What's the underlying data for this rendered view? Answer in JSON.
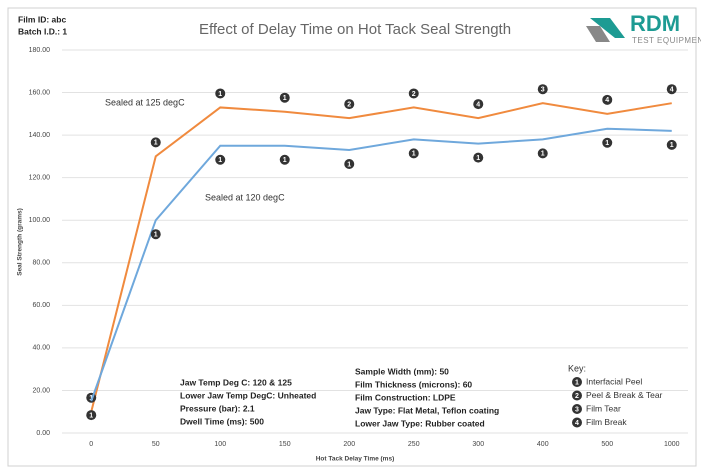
{
  "chart_data": {
    "type": "line",
    "title": "Effect of Delay Time on Hot Tack Seal Strength",
    "header_lines": [
      "Film ID: abc",
      "Batch I.D.: 1"
    ],
    "logo": {
      "name": "RDM",
      "subtitle": "TEST EQUIPMENT"
    },
    "x_label": "Hot Tack Delay Time (ms)",
    "y_label": "Seal Strength (grams)",
    "categories": [
      "0",
      "50",
      "100",
      "150",
      "200",
      "250",
      "300",
      "400",
      "500",
      "1000"
    ],
    "ylim": [
      0,
      180
    ],
    "yticks": [
      {
        "value": 0,
        "label": "0.00"
      },
      {
        "value": 20,
        "label": "20.00"
      },
      {
        "value": 40,
        "label": "40.00"
      },
      {
        "value": 60,
        "label": "60.00"
      },
      {
        "value": 80,
        "label": "80.00"
      },
      {
        "value": 100,
        "label": "100.00"
      },
      {
        "value": 120,
        "label": "120.00"
      },
      {
        "value": 140,
        "label": "140.00"
      },
      {
        "value": 160,
        "label": "160.00"
      },
      {
        "value": 180,
        "label": "180.00"
      }
    ],
    "grid": true,
    "series": [
      {
        "name": "Sealed at 125 degC",
        "color": "#f08a3e",
        "values": [
          10,
          130,
          153,
          151,
          148,
          153,
          148,
          155,
          150,
          155
        ],
        "failure_modes": [
          1,
          1,
          1,
          1,
          2,
          2,
          4,
          3,
          4,
          4
        ]
      },
      {
        "name": "Sealed at 120 degC",
        "color": "#6fa8dc",
        "values": [
          15,
          100,
          135,
          135,
          133,
          138,
          136,
          138,
          143,
          142
        ],
        "failure_modes": [
          1,
          1,
          1,
          1,
          1,
          1,
          1,
          1,
          1,
          1
        ]
      }
    ],
    "info_left": [
      "Jaw Temp Deg C: 120 & 125",
      "Lower Jaw Temp DegC: Unheated",
      "Pressure (bar): 2.1",
      "Dwell Time (ms): 500"
    ],
    "info_right": [
      "Sample Width (mm): 50",
      "Film Thickness (microns): 60",
      "Film Construction: LDPE",
      "Jaw Type: Flat Metal, Teflon coating",
      "Lower Jaw Type: Rubber coated"
    ],
    "key": {
      "title": "Key:",
      "items": [
        {
          "code": 1,
          "label": "Interfacial Peel"
        },
        {
          "code": 2,
          "label": "Peel & Break & Tear"
        },
        {
          "code": 3,
          "label": "Film Tear"
        },
        {
          "code": 4,
          "label": "Film Break"
        }
      ]
    }
  }
}
